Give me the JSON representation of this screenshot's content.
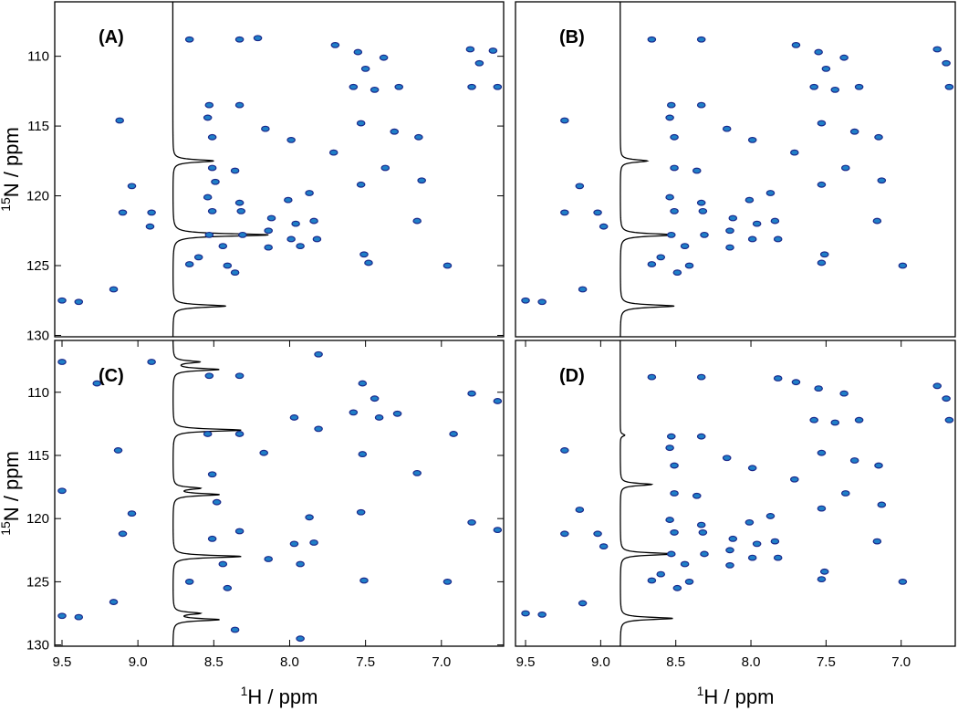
{
  "chart_data": [
    {
      "type": "scatter",
      "panel_label": "(A)",
      "ylabel_sup": "15",
      "ylabel": "N / ppm",
      "xlim": [
        9.548,
        6.59
      ],
      "ylim": [
        130.1,
        106.1
      ],
      "yticks": [
        110,
        115,
        120,
        125,
        130
      ],
      "color": "#1f7fc8",
      "trace": {
        "baseline": 8.77,
        "centers": [
          117.5,
          122.8,
          127.9
        ],
        "tips": [
          8.5,
          8.14,
          8.42
        ]
      },
      "x": [
        8.66,
        8.33,
        8.21,
        7.7,
        7.55,
        7.38,
        6.81,
        6.66,
        6.75,
        7.5,
        7.58,
        7.44,
        7.28,
        6.8,
        6.63,
        8.33,
        8.53,
        9.12,
        8.54,
        8.16,
        7.53,
        7.31,
        7.15,
        7.99,
        8.51,
        7.71,
        8.51,
        7.37,
        8.36,
        9.04,
        7.53,
        7.13,
        8.49,
        8.54,
        8.33,
        8.01,
        7.87,
        9.1,
        8.91,
        8.51,
        8.32,
        8.12,
        7.96,
        7.84,
        7.16,
        8.92,
        8.53,
        8.31,
        8.14,
        7.99,
        8.44,
        8.14,
        7.82,
        7.93,
        7.51,
        8.6,
        8.41,
        8.66,
        7.48,
        6.96,
        8.36,
        9.16,
        9.5,
        9.39
      ],
      "values": [
        108.8,
        108.8,
        108.7,
        109.2,
        109.7,
        110.1,
        109.5,
        109.6,
        110.5,
        110.9,
        112.2,
        112.4,
        112.2,
        112.2,
        112.2,
        113.5,
        113.5,
        114.6,
        114.4,
        115.2,
        114.8,
        115.4,
        115.8,
        116.0,
        115.8,
        116.9,
        118.0,
        118.0,
        118.2,
        119.3,
        119.2,
        118.9,
        119.0,
        120.1,
        120.5,
        120.3,
        119.8,
        121.2,
        121.2,
        121.1,
        121.1,
        121.6,
        122.0,
        121.8,
        121.8,
        122.2,
        122.8,
        122.8,
        122.5,
        123.1,
        123.6,
        123.7,
        123.1,
        123.6,
        124.2,
        124.4,
        125.0,
        124.9,
        124.8,
        125.0,
        125.5,
        126.7,
        127.5,
        127.6
      ]
    },
    {
      "type": "scatter",
      "panel_label": "(B)",
      "xlim": [
        9.567,
        6.64
      ],
      "ylim": [
        130.1,
        106.1
      ],
      "color": "#1f7fc8",
      "trace": {
        "baseline": 8.87,
        "centers": [
          117.5,
          122.8,
          127.9
        ],
        "tips": [
          8.69,
          8.51,
          8.51
        ]
      },
      "x": [
        8.66,
        8.33,
        7.7,
        7.55,
        7.38,
        6.76,
        6.7,
        7.5,
        7.58,
        7.44,
        7.28,
        6.68,
        8.33,
        8.53,
        9.24,
        8.54,
        8.16,
        7.53,
        7.31,
        7.15,
        7.99,
        8.51,
        7.71,
        8.51,
        7.37,
        8.36,
        9.14,
        7.53,
        7.13,
        8.54,
        8.33,
        8.01,
        7.87,
        9.24,
        9.02,
        8.51,
        8.32,
        8.12,
        7.96,
        7.84,
        7.16,
        8.98,
        8.53,
        8.31,
        8.14,
        7.99,
        8.44,
        8.14,
        7.82,
        7.51,
        8.6,
        8.41,
        8.66,
        7.53,
        6.99,
        8.49,
        9.12,
        9.5,
        9.39
      ],
      "values": [
        108.8,
        108.8,
        109.2,
        109.7,
        110.1,
        109.5,
        110.5,
        110.9,
        112.2,
        112.4,
        112.2,
        112.2,
        113.5,
        113.5,
        114.6,
        114.4,
        115.2,
        114.8,
        115.4,
        115.8,
        116.0,
        115.8,
        116.9,
        118.0,
        118.0,
        118.2,
        119.3,
        119.2,
        118.9,
        120.1,
        120.5,
        120.3,
        119.8,
        121.2,
        121.2,
        121.1,
        121.1,
        121.6,
        122.0,
        121.8,
        121.8,
        122.2,
        122.8,
        122.8,
        122.5,
        123.1,
        123.6,
        123.7,
        123.1,
        124.2,
        124.4,
        125.0,
        124.9,
        124.8,
        125.0,
        125.5,
        126.7,
        127.5,
        127.6
      ]
    },
    {
      "type": "scatter",
      "panel_label": "(C)",
      "xlabel_sup": "1",
      "xlabel": "H / ppm",
      "ylabel_sup": "15",
      "ylabel": "N / ppm",
      "xlim": [
        9.548,
        6.59
      ],
      "ylim": [
        130.1,
        105.9
      ],
      "yticks": [
        110,
        115,
        120,
        125,
        130
      ],
      "xticks": [
        9.5,
        {
          "value": 9,
          "label": "9.0"
        },
        8.5,
        {
          "value": 8,
          "label": "8.0"
        },
        7.5,
        {
          "value": 7,
          "label": "7.0"
        }
      ],
      "color": "#1f7fc8",
      "trace": {
        "baseline": 8.77,
        "centers": [
          107.6,
          108.2,
          113.0,
          117.6,
          118.1,
          123.0,
          127.5,
          128.0
        ],
        "tips": [
          8.6,
          8.47,
          8.32,
          8.6,
          8.47,
          8.32,
          8.6,
          8.47
        ]
      },
      "x": [
        9.5,
        9.27,
        8.91,
        8.53,
        8.33,
        7.81,
        7.52,
        7.44,
        7.58,
        7.41,
        7.29,
        6.8,
        6.63,
        7.97,
        7.81,
        8.54,
        8.33,
        9.13,
        8.17,
        7.52,
        7.16,
        6.92,
        9.5,
        8.51,
        9.04,
        7.53,
        8.48,
        8.33,
        7.87,
        9.1,
        8.51,
        7.97,
        7.84,
        6.8,
        6.63,
        8.14,
        8.44,
        7.93,
        7.51,
        8.66,
        8.41,
        6.96,
        9.16,
        9.5,
        9.39,
        8.36,
        7.93
      ],
      "values": [
        107.6,
        109.3,
        107.6,
        108.7,
        108.7,
        107.0,
        109.3,
        110.5,
        111.6,
        112.0,
        111.7,
        110.1,
        110.7,
        112.0,
        112.9,
        113.3,
        113.3,
        114.6,
        114.8,
        114.9,
        116.4,
        113.3,
        117.8,
        116.5,
        119.6,
        119.5,
        118.7,
        121.0,
        119.9,
        121.2,
        121.6,
        122.0,
        121.9,
        120.3,
        120.9,
        123.2,
        123.6,
        123.6,
        124.9,
        125.0,
        125.5,
        125.0,
        126.6,
        127.7,
        127.8,
        128.8,
        129.5
      ]
    },
    {
      "type": "scatter",
      "panel_label": "(D)",
      "xlabel_sup": "1",
      "xlabel": "H / ppm",
      "xlim": [
        9.567,
        6.64
      ],
      "ylim": [
        130.1,
        105.9
      ],
      "xticks": [
        9.5,
        {
          "value": 9,
          "label": "9.0"
        },
        8.5,
        {
          "value": 8,
          "label": "8.0"
        },
        7.5,
        {
          "value": 7,
          "label": "7.0"
        }
      ],
      "color": "#1f7fc8",
      "trace": {
        "baseline": 8.87,
        "centers": [
          113.4,
          117.3,
          122.8,
          127.9
        ],
        "tips": [
          8.84,
          8.66,
          8.51,
          8.52
        ]
      },
      "x": [
        8.66,
        8.33,
        7.82,
        7.7,
        7.55,
        7.38,
        6.76,
        6.7,
        7.58,
        7.44,
        7.28,
        6.68,
        8.33,
        8.53,
        9.24,
        8.54,
        8.16,
        7.53,
        7.31,
        7.15,
        7.99,
        8.51,
        7.71,
        8.51,
        7.37,
        8.36,
        9.14,
        7.53,
        7.13,
        8.54,
        8.33,
        8.01,
        7.87,
        9.24,
        9.02,
        8.51,
        8.32,
        8.12,
        7.96,
        7.84,
        7.16,
        8.98,
        8.53,
        8.31,
        8.14,
        7.99,
        8.44,
        8.14,
        7.82,
        7.51,
        8.6,
        8.41,
        8.66,
        7.53,
        6.99,
        8.49,
        9.12,
        9.5,
        9.39
      ],
      "values": [
        108.8,
        108.8,
        108.9,
        109.2,
        109.7,
        110.1,
        109.5,
        110.5,
        112.2,
        112.4,
        112.2,
        112.2,
        113.5,
        113.5,
        114.6,
        114.4,
        115.2,
        114.8,
        115.4,
        115.8,
        116.0,
        115.8,
        116.9,
        118.0,
        118.0,
        118.2,
        119.3,
        119.2,
        118.9,
        120.1,
        120.5,
        120.3,
        119.8,
        121.2,
        121.2,
        121.1,
        121.1,
        121.6,
        122.0,
        121.8,
        121.8,
        122.2,
        122.8,
        122.8,
        122.5,
        123.1,
        123.6,
        123.7,
        123.1,
        124.2,
        124.4,
        125.0,
        124.9,
        124.8,
        125.0,
        125.5,
        126.7,
        127.5,
        127.6
      ]
    }
  ]
}
